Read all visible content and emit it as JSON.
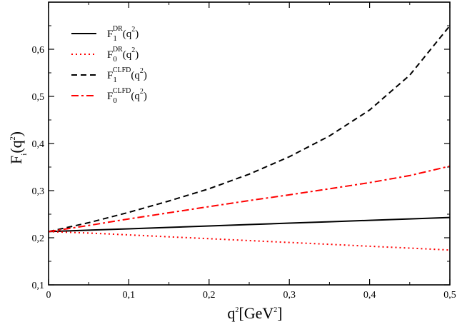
{
  "chart_data": {
    "type": "line",
    "title": "",
    "xlabel": {
      "base": "q",
      "sup": "2",
      "unit_open": "[GeV",
      "unit_sup": "2",
      "unit_close": "]"
    },
    "ylabel": {
      "base": "F",
      "sub": "i",
      "open": "(q",
      "sup": "2",
      "close": ")"
    },
    "xlim": [
      0,
      0.5
    ],
    "ylim": [
      0.1,
      0.7
    ],
    "x_ticks": [
      {
        "value": 0,
        "label": "0"
      },
      {
        "value": 0.1,
        "label": "0,1"
      },
      {
        "value": 0.2,
        "label": "0,2"
      },
      {
        "value": 0.3,
        "label": "0,3"
      },
      {
        "value": 0.4,
        "label": "0,4"
      },
      {
        "value": 0.5,
        "label": "0,5"
      }
    ],
    "y_ticks": [
      {
        "value": 0.1,
        "label": "0,1"
      },
      {
        "value": 0.2,
        "label": "0,2"
      },
      {
        "value": 0.3,
        "label": "0,3"
      },
      {
        "value": 0.4,
        "label": "0,4"
      },
      {
        "value": 0.5,
        "label": "0,5"
      },
      {
        "value": 0.6,
        "label": "0,6"
      }
    ],
    "grid": false,
    "legend_position": "top-left",
    "x": [
      0,
      0.05,
      0.1,
      0.15,
      0.2,
      0.25,
      0.3,
      0.35,
      0.4,
      0.45,
      0.5
    ],
    "series": [
      {
        "name": "F1 DR",
        "legend": {
          "base": "F",
          "sub": "1",
          "sup": "DR",
          "tail": "(q",
          "tail_sup": "2",
          "close": ")"
        },
        "color": "#000000",
        "dash": "solid",
        "values": [
          0.213,
          0.216,
          0.219,
          0.222,
          0.225,
          0.228,
          0.231,
          0.234,
          0.237,
          0.24,
          0.243
        ]
      },
      {
        "name": "F0 DR",
        "legend": {
          "base": "F",
          "sub": "0",
          "sup": "DR",
          "tail": "(q",
          "tail_sup": "2",
          "close": ")"
        },
        "color": "#ff0000",
        "dash": "dotted",
        "values": [
          0.213,
          0.21,
          0.206,
          0.202,
          0.198,
          0.194,
          0.19,
          0.186,
          0.182,
          0.178,
          0.174
        ]
      },
      {
        "name": "F1 CLFD",
        "legend": {
          "base": "F",
          "sub": "1",
          "sup": "CLFD",
          "tail": "(q",
          "tail_sup": "2",
          "close": ")"
        },
        "color": "#000000",
        "dash": "dashed",
        "values": [
          0.213,
          0.232,
          0.254,
          0.278,
          0.304,
          0.335,
          0.372,
          0.416,
          0.471,
          0.545,
          0.65
        ]
      },
      {
        "name": "F0 CLFD",
        "legend": {
          "base": "F",
          "sub": "0",
          "sup": "CLFD",
          "tail": "(q",
          "tail_sup": "2",
          "close": ")"
        },
        "color": "#ff0000",
        "dash": "dashdot",
        "values": [
          0.213,
          0.226,
          0.24,
          0.253,
          0.266,
          0.279,
          0.291,
          0.304,
          0.317,
          0.332,
          0.352
        ]
      }
    ]
  }
}
